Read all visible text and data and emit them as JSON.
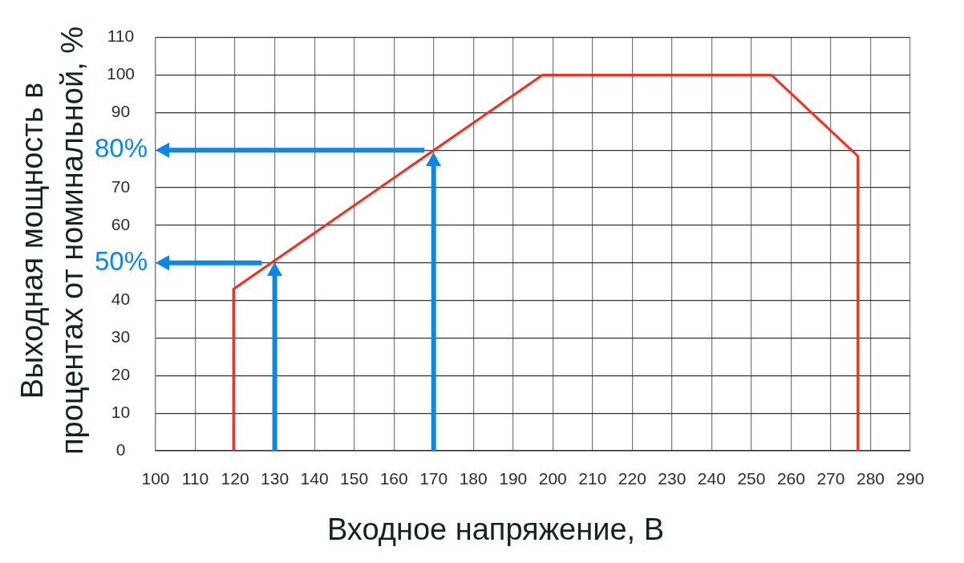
{
  "chart_data": {
    "type": "line",
    "xlabel": "Входное напряжение, В",
    "ylabel": "Выходная мощность в процентах от номинальной, %",
    "x": [
      119.6,
      119.6,
      197.4,
      255,
      276.8,
      276.8
    ],
    "values": [
      0,
      43,
      100,
      100,
      78.4,
      0
    ],
    "color": "#ff2a1a",
    "xlim": [
      100,
      290
    ],
    "ylim": [
      0,
      110
    ],
    "xticks": [
      100,
      110,
      120,
      130,
      140,
      150,
      160,
      170,
      180,
      190,
      200,
      210,
      220,
      230,
      240,
      250,
      260,
      270,
      280,
      290
    ],
    "yticks": [
      0,
      10,
      20,
      30,
      40,
      {
        "value": 50,
        "label": null
      },
      60,
      70,
      {
        "value": 80,
        "label": null
      },
      90,
      100,
      110
    ],
    "grid": true,
    "legend": false,
    "marker": "none",
    "line_style": "solid",
    "ref_lines": [
      {
        "axis": "y",
        "value": 80,
        "label": "80%",
        "color": "#0b87e8"
      },
      {
        "axis": "x",
        "value": 170,
        "color": "#0b87e8"
      },
      {
        "axis": "y",
        "value": 50,
        "label": "50%",
        "color": "#0b87e8"
      },
      {
        "axis": "x",
        "value": 130,
        "color": "#0b87e8"
      }
    ]
  }
}
